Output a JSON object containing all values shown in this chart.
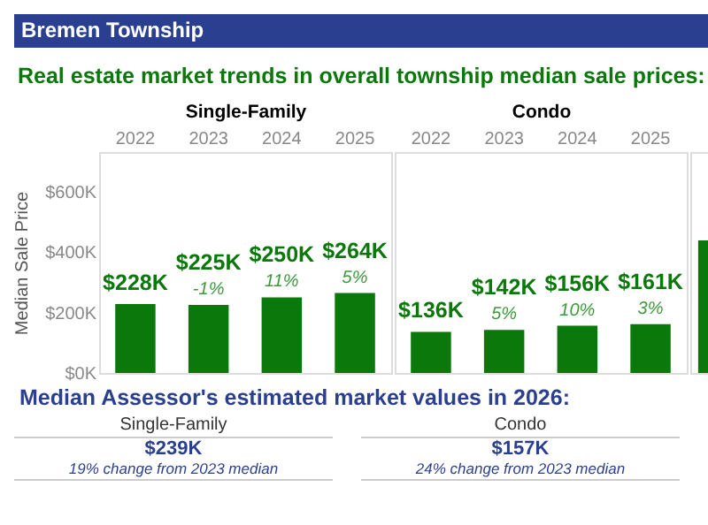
{
  "chart_data": [
    {
      "type": "bar",
      "title": "Bremen Township",
      "subtitle": "Real estate market trends in overall township median sale prices:",
      "xlabel": "Single-Family",
      "ylabel": "Median Sale Price",
      "categories": [
        "2022",
        "2023",
        "2024",
        "2025"
      ],
      "values": [
        228,
        225,
        250,
        264
      ],
      "color": "#0b780b",
      "value_labels": [
        "$228K",
        "$225K",
        "$250K",
        "$264K"
      ],
      "ylim": [
        0,
        730
      ],
      "yticks": [
        {
          "value": 0,
          "label": "$0K"
        },
        {
          "value": 200,
          "label": "$200K"
        },
        {
          "value": 400,
          "label": "$400K"
        },
        {
          "value": 600,
          "label": "$600K"
        }
      ],
      "annotations": [
        {
          "text": "-1%",
          "x": "2023",
          "y": 225
        },
        {
          "text": "11%",
          "x": "2024",
          "y": 250
        },
        {
          "text": "5%",
          "x": "2025",
          "y": 264
        }
      ]
    },
    {
      "type": "bar",
      "xlabel": "Condo",
      "categories": [
        "2022",
        "2023",
        "2024",
        "2025"
      ],
      "values": [
        136,
        142,
        156,
        161
      ],
      "color": "#0b780b",
      "value_labels": [
        "$136K",
        "$142K",
        "$156K",
        "$161K"
      ],
      "ylim": [
        0,
        730
      ],
      "tick_labels": "x",
      "annotations": [
        {
          "text": "5%",
          "x": "2023",
          "y": 142
        },
        {
          "text": "10%",
          "x": "2024",
          "y": 156
        },
        {
          "text": "3%",
          "x": "2025",
          "y": 161
        }
      ]
    },
    {
      "type": "bar",
      "categories": [
        null
      ],
      "values": [
        438
      ],
      "color": "#0b780b",
      "ylim": [
        0,
        730
      ],
      "tick_labels": false
    },
    {
      "type": "other",
      "title": "Median Assessor's estimated market values in 2026:",
      "annotations": [
        "Single-Family",
        "$239K",
        "19% change from 2023 median",
        "Condo",
        "$157K",
        "24% change from 2023 median"
      ]
    }
  ]
}
